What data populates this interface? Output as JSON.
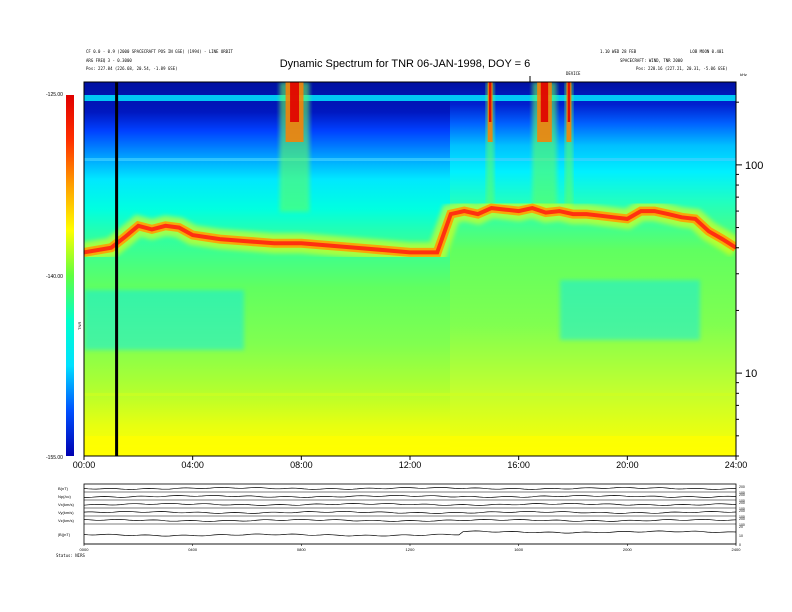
{
  "chart_data": {
    "type": "heatmap",
    "title": "Dynamic Spectrum for TNR 06-JAN-1998, DOY = 6",
    "header_left": [
      "CF 0.0 - 0.9 (2000 SPACECRAFT POS IN GSE) (1994) - LINE ORBIT",
      "ARG FREQ 3 - 0.3000",
      "Pos: 227.84 (226.68, 20.54, -1.89 GSE)"
    ],
    "header_right": [
      "1.10 WED 28 FEB",
      "SPACECRAFT: WIND, TNR 2000",
      "Pos: 228.16 (227.21, 20.31, -5.06 GSE)"
    ],
    "header_right_extra": "LOB MOON 0.401",
    "top_marker_label": "DEVICE",
    "colorbar": {
      "label": "TNR",
      "ticks": [
        "-125.00",
        "-140.00",
        "-155.00"
      ],
      "min": -155,
      "max": -125,
      "colors": [
        "#0000b0",
        "#0050ff",
        "#00e0ff",
        "#00ffcc",
        "#60ff40",
        "#ffff00",
        "#ffa000",
        "#ff3000",
        "#e00000"
      ]
    },
    "x_axis": {
      "ticks": [
        "00:00",
        "04:00",
        "08:00",
        "12:00",
        "16:00",
        "20:00",
        "24:00"
      ],
      "range": [
        0,
        24
      ]
    },
    "y_axis_right": {
      "label": "kHz",
      "ticks": [
        "100",
        "10"
      ],
      "scale": "log",
      "range": [
        4,
        250
      ]
    },
    "vertical_marker_hour": 1.2,
    "emission_band": {
      "hours": [
        0,
        1,
        1.5,
        2,
        2.5,
        3,
        3.5,
        4,
        5,
        6,
        7,
        8,
        9,
        10,
        11,
        12,
        13,
        13.5,
        14,
        14.5,
        15,
        15.5,
        16,
        16.5,
        17,
        17.5,
        18,
        18.5,
        19,
        19.5,
        20,
        20.5,
        21,
        21.5,
        22,
        22.5,
        23,
        23.5,
        24
      ],
      "khz": [
        38,
        40,
        45,
        51,
        49,
        51,
        50,
        46,
        44,
        43,
        42,
        42,
        41,
        40,
        39,
        38,
        38,
        58,
        60,
        58,
        62,
        61,
        60,
        62,
        59,
        60,
        58,
        58,
        57,
        56,
        55,
        60,
        60,
        58,
        56,
        55,
        48,
        44,
        40
      ]
    },
    "bursts": [
      {
        "start_hour": 7.2,
        "end_hour": 8.3,
        "label": ""
      },
      {
        "start_hour": 14.8,
        "end_hour": 15.1,
        "label": ""
      },
      {
        "start_hour": 16.5,
        "end_hour": 17.4,
        "label": ""
      },
      {
        "start_hour": 17.7,
        "end_hour": 18.0,
        "label": ""
      }
    ],
    "bottom_panels": {
      "labels": [
        "B(nT)",
        "Np(/cc)",
        "Vx(km/s)",
        "Vy(km/s)",
        "Vz(km/s)",
        "|B|(nT)"
      ],
      "right_ticks": [
        [
          "200",
          "100"
        ],
        [
          "200",
          "100"
        ],
        [
          "200",
          "100"
        ],
        [
          "200",
          "100"
        ],
        [
          "200",
          "100"
        ],
        [
          "20",
          "10",
          "0"
        ]
      ],
      "x_ticks": [
        "0000",
        "0400",
        "0800",
        "1200",
        "1600",
        "2000",
        "2400"
      ]
    },
    "footnote": "Status: NIRS"
  }
}
